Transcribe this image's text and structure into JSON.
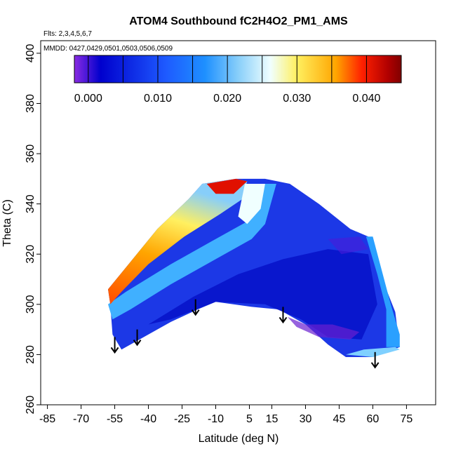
{
  "chart_data": {
    "type": "heatmap",
    "title": "ATOM4 Southbound fC2H4O2_PM1_AMS",
    "annotations": [
      "Flts: 2,3,4,5,6,7",
      "MMDD: 0427,0429,0501,0503,0506,0509"
    ],
    "xlabel": "Latitude (deg N)",
    "ylabel": "Theta (C)",
    "xlim": [
      -88,
      88
    ],
    "ylim": [
      260,
      405
    ],
    "x_ticks": [
      -85,
      -70,
      -55,
      -40,
      -25,
      -10,
      5,
      15,
      30,
      45,
      60,
      75
    ],
    "y_ticks": [
      260,
      280,
      300,
      320,
      340,
      360,
      380,
      400
    ],
    "colorbar": {
      "min": -0.002,
      "max": 0.045,
      "ticks": [
        "0.000",
        "0.010",
        "0.020",
        "0.030",
        "0.040"
      ],
      "tick_values": [
        0,
        0.01,
        0.02,
        0.03,
        0.04
      ]
    },
    "arrows_x": [
      -55,
      -45,
      -19,
      20,
      61
    ],
    "colors": {
      "palette": [
        "#8a2be2",
        "#0000cd",
        "#1e5aff",
        "#1e90ff",
        "#87cefa",
        "#f0ffff",
        "#fff060",
        "#ffa500",
        "#ff2000",
        "#b00000",
        "#800000"
      ]
    }
  }
}
